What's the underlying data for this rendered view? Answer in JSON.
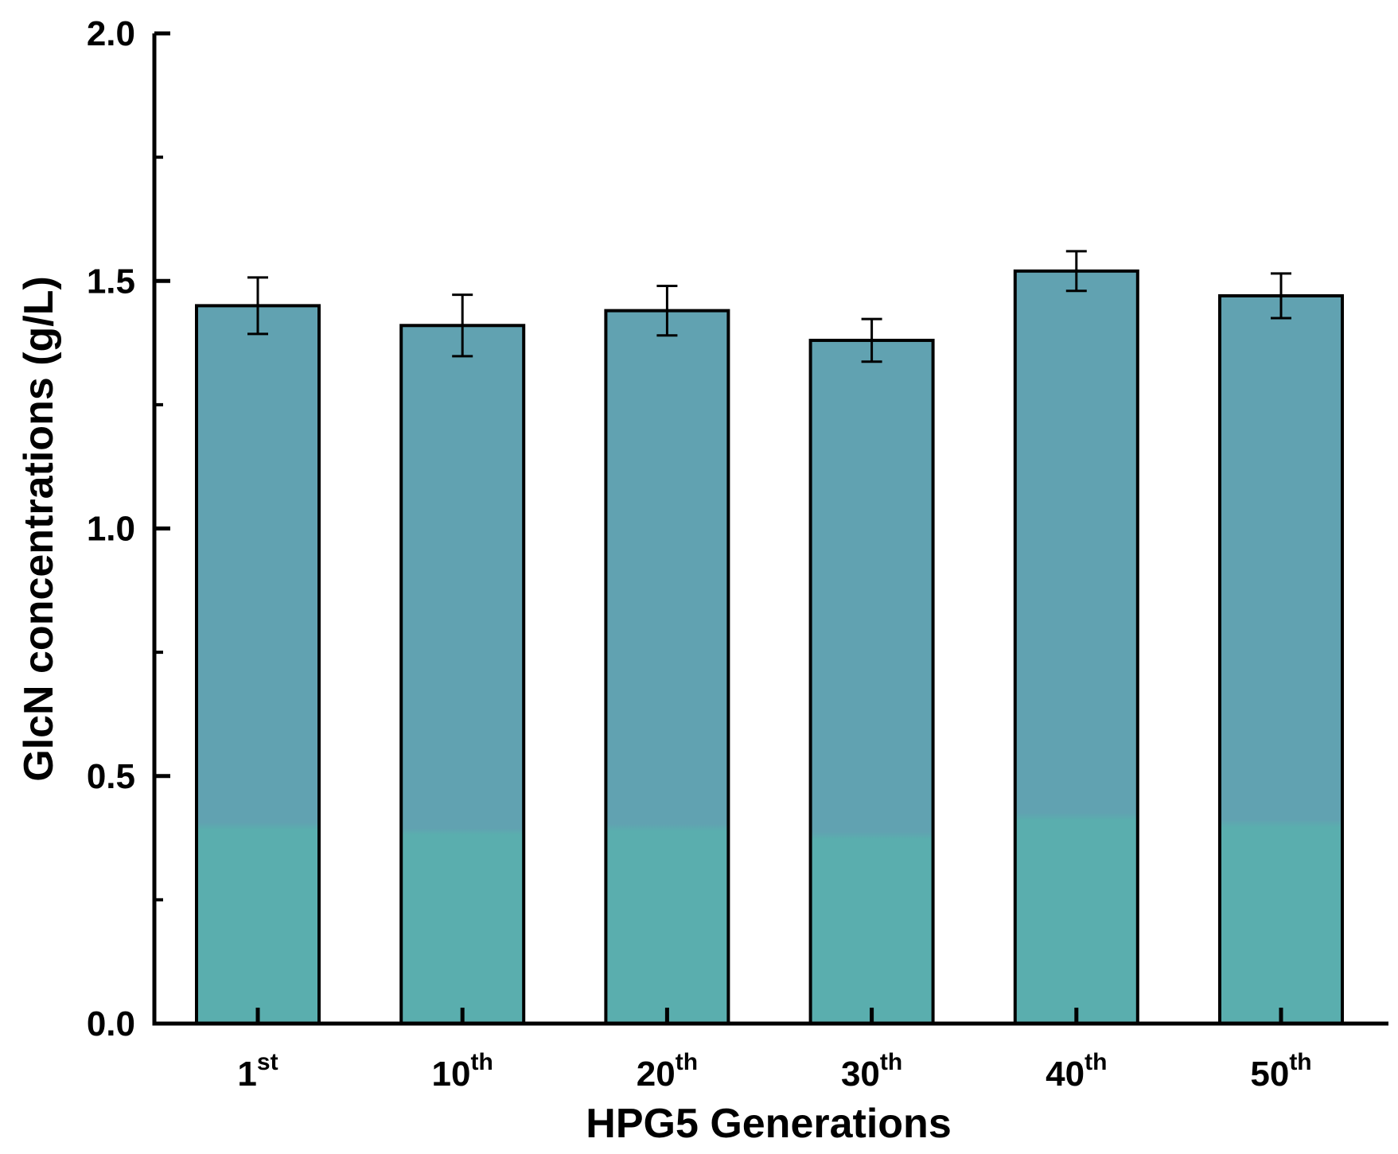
{
  "chart_data": {
    "type": "bar",
    "title": "",
    "xlabel": "HPG5 Generations",
    "ylabel": "GlcN concentrations (g/L)",
    "categories": [
      {
        "base": "1",
        "sup": "st"
      },
      {
        "base": "10",
        "sup": "th"
      },
      {
        "base": "20",
        "sup": "th"
      },
      {
        "base": "30",
        "sup": "th"
      },
      {
        "base": "40",
        "sup": "th"
      },
      {
        "base": "50",
        "sup": "th"
      }
    ],
    "values": [
      1.45,
      1.41,
      1.44,
      1.38,
      1.52,
      1.47
    ],
    "errors": [
      0.057,
      0.062,
      0.05,
      0.043,
      0.04,
      0.045
    ],
    "ylim": [
      0,
      2.0
    ],
    "yticks": [
      "0.0",
      "0.5",
      "1.0",
      "1.5",
      "2.0"
    ],
    "grid": false,
    "legend": "none",
    "colors": {
      "bar_top": "#61a2b1",
      "bar_bottom": "#5aaeae",
      "bar_outline": "#000000",
      "axis": "#000000"
    }
  }
}
